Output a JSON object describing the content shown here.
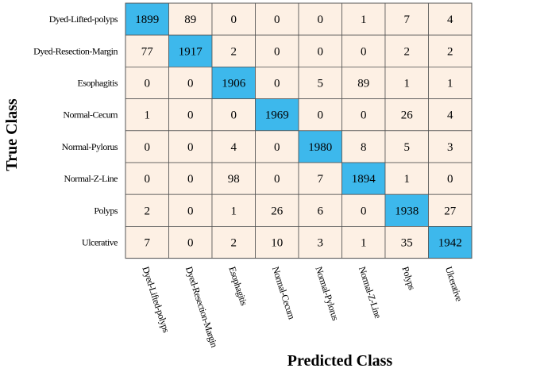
{
  "chart_data": {
    "type": "heatmap",
    "title": "",
    "xlabel": "Predicted Class",
    "ylabel": "True Class",
    "rows": [
      "Dyed-Lifted-polyps",
      "Dyed-Resection-Margin",
      "Esophagitis",
      "Normal-Cecum",
      "Normal-Pylorus",
      "Normal-Z-Line",
      "Polyps",
      "Ulcerative"
    ],
    "cols": [
      "Dyed-Lifted-polyps",
      "Dyed-Resection-Margin",
      "Esophagitis",
      "Normal-Cecum",
      "Normal-Pylorus",
      "Normal-Z-Line",
      "Polyps",
      "Ulcerative"
    ],
    "values": [
      [
        1899,
        89,
        0,
        0,
        0,
        1,
        7,
        4
      ],
      [
        77,
        1917,
        2,
        0,
        0,
        0,
        2,
        2
      ],
      [
        0,
        0,
        1906,
        0,
        5,
        89,
        1,
        1
      ],
      [
        1,
        0,
        0,
        1969,
        0,
        0,
        26,
        4
      ],
      [
        0,
        0,
        4,
        0,
        1980,
        8,
        5,
        3
      ],
      [
        0,
        0,
        98,
        0,
        7,
        1894,
        1,
        0
      ],
      [
        2,
        0,
        1,
        26,
        6,
        0,
        1938,
        27
      ],
      [
        7,
        0,
        2,
        10,
        3,
        1,
        35,
        1942
      ]
    ],
    "colors": {
      "diagonal": "#3db8ec",
      "off_diagonal": "#fdf0e4",
      "grid": "#555555"
    }
  }
}
